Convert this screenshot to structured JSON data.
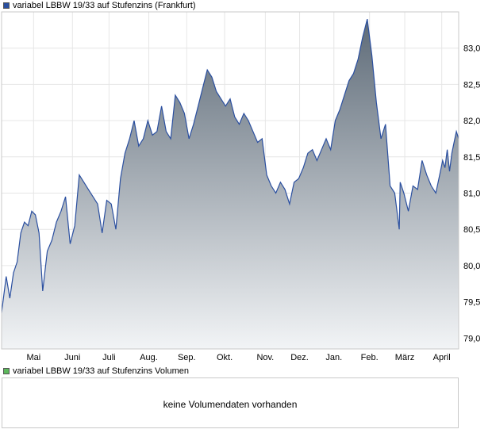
{
  "legend": {
    "price_label": "variabel LBBW 19/33 auf Stufenzins (Frankfurt)",
    "price_color": "#2a4fa0",
    "volume_label": "variabel LBBW 19/33 auf Stufenzins Volumen",
    "volume_color": "#5cb85c"
  },
  "volume_panel": {
    "message": "keine Volumendaten vorhanden"
  },
  "chart_data": {
    "type": "area",
    "line_color": "#2a4fa0",
    "fill_top_color": "#5e6b78",
    "fill_bottom_color": "#f2f4f6",
    "grid": true,
    "y_axis_side": "right",
    "ylim": [
      78.85,
      83.5
    ],
    "yticks": [
      "79,0",
      "79,5",
      "80,0",
      "80,5",
      "81,0",
      "81,5",
      "82,0",
      "82,5",
      "83,0"
    ],
    "ytick_values": [
      79.0,
      79.5,
      80.0,
      80.5,
      81.0,
      81.5,
      82.0,
      82.5,
      83.0
    ],
    "xticks": [
      "Mai",
      "Juni",
      "Juli",
      "Aug.",
      "Sep.",
      "Okt.",
      "Nov.",
      "Dez.",
      "Jan.",
      "Feb.",
      "März",
      "April"
    ],
    "xtick_positions": [
      0.07,
      0.155,
      0.235,
      0.322,
      0.405,
      0.488,
      0.577,
      0.652,
      0.727,
      0.805,
      0.882,
      0.963
    ],
    "series": [
      {
        "x": [
          0.0,
          0.01,
          0.018,
          0.026,
          0.034,
          0.042,
          0.05,
          0.058,
          0.066,
          0.074,
          0.082,
          0.09,
          0.1,
          0.11,
          0.12,
          0.13,
          0.14,
          0.15,
          0.16,
          0.17,
          0.18,
          0.19,
          0.2,
          0.21,
          0.22,
          0.23,
          0.24,
          0.25,
          0.26,
          0.27,
          0.28,
          0.29,
          0.3,
          0.31,
          0.32,
          0.33,
          0.34,
          0.35,
          0.36,
          0.37,
          0.38,
          0.39,
          0.4,
          0.41,
          0.42,
          0.43,
          0.44,
          0.45,
          0.46,
          0.47,
          0.48,
          0.49,
          0.5,
          0.51,
          0.52,
          0.53,
          0.54,
          0.55,
          0.56,
          0.57,
          0.58,
          0.59,
          0.6,
          0.61,
          0.62,
          0.63,
          0.64,
          0.65,
          0.66,
          0.67,
          0.68,
          0.69,
          0.7,
          0.71,
          0.72,
          0.73,
          0.74,
          0.75,
          0.76,
          0.77,
          0.78,
          0.79,
          0.8,
          0.81,
          0.82,
          0.83,
          0.84,
          0.85,
          0.86,
          0.87,
          0.872,
          0.88,
          0.89,
          0.9,
          0.91,
          0.92,
          0.93,
          0.94,
          0.95,
          0.96,
          0.965,
          0.97,
          0.975,
          0.98,
          0.985,
          0.99,
          0.995,
          1.0
        ],
        "y": [
          79.35,
          79.85,
          79.55,
          79.9,
          80.05,
          80.45,
          80.6,
          80.55,
          80.75,
          80.7,
          80.45,
          79.65,
          80.2,
          80.35,
          80.6,
          80.75,
          80.95,
          80.3,
          80.55,
          81.25,
          81.15,
          81.05,
          80.95,
          80.85,
          80.45,
          80.9,
          80.85,
          80.5,
          81.2,
          81.55,
          81.75,
          82.0,
          81.65,
          81.75,
          82.0,
          81.8,
          81.85,
          82.2,
          81.85,
          81.75,
          82.35,
          82.25,
          82.1,
          81.75,
          81.95,
          82.2,
          82.45,
          82.7,
          82.6,
          82.4,
          82.3,
          82.2,
          82.3,
          82.05,
          81.95,
          82.1,
          82.0,
          81.85,
          81.7,
          81.75,
          81.25,
          81.1,
          81.0,
          81.15,
          81.05,
          80.85,
          81.15,
          81.2,
          81.35,
          81.55,
          81.6,
          81.45,
          81.6,
          81.75,
          81.6,
          82.0,
          82.15,
          82.35,
          82.55,
          82.65,
          82.85,
          83.15,
          83.4,
          82.9,
          82.25,
          81.75,
          81.95,
          81.1,
          81.0,
          80.5,
          81.15,
          81.0,
          80.75,
          81.1,
          81.05,
          81.45,
          81.25,
          81.1,
          81.0,
          81.3,
          81.45,
          81.35,
          81.6,
          81.3,
          81.55,
          81.7,
          81.85,
          81.75
        ],
        "note_x": "x is the fraction of the visible time span (May to mid-April)"
      }
    ]
  }
}
